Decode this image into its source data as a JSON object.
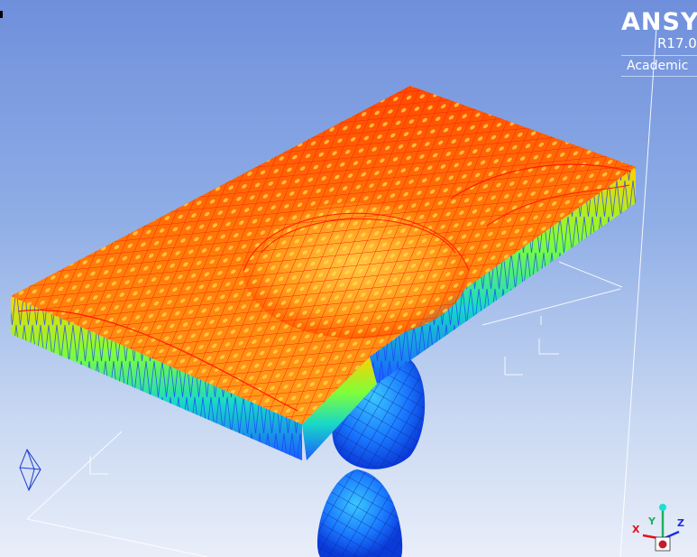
{
  "logo": {
    "brand": "ANSYS",
    "version": "R17.0",
    "license": "Academic"
  },
  "triad": {
    "x_label": "X",
    "y_label": "Y",
    "z_label": "Z",
    "colors": {
      "x": "#e0121a",
      "y": "#1fb060",
      "z": "#1d2fe0",
      "cube": "#c21c2a"
    }
  },
  "scene": {
    "background_top": "#6f8fdc",
    "background_bottom": "#e9eef9",
    "sheet_colors": [
      "#ff2a00",
      "#ff7a00",
      "#ffd000",
      "#b8ff28",
      "#18e08a",
      "#1ab8ff",
      "#1a4cff"
    ],
    "droplet_color": "#1a6cff"
  }
}
